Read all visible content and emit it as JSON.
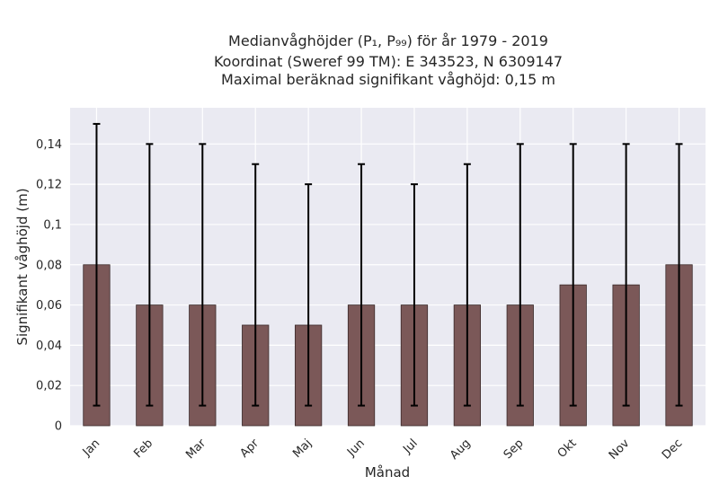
{
  "title_lines": [
    "Medianvåghöjder (P₁, P₉₉) för år 1979 - 2019",
    "Koordinat (Sweref 99 TM): E 343523, N 6309147",
    "Maximal beräknad signifikant våghöjd: 0,15 m"
  ],
  "colors": {
    "bar_fill": "#7b5858",
    "bar_stroke": "#3a2a2a",
    "errorbar": "#000000",
    "plot_bg": "#eaeaf2",
    "grid": "#ffffff"
  },
  "chart_data": {
    "type": "bar",
    "title": "Medianvåghöjder (P₁, P₉₉) för år 1979 - 2019",
    "xlabel": "Månad",
    "ylabel": "Signifikant våghöjd (m)",
    "ylim": [
      0,
      0.158
    ],
    "yticks": [
      0,
      0.02,
      0.04,
      0.06,
      0.08,
      0.1,
      0.12,
      0.14
    ],
    "ytick_labels": [
      "0",
      "0,02",
      "0,04",
      "0,06",
      "0,08",
      "0,1",
      "0,12",
      "0,14"
    ],
    "grid": true,
    "categories": [
      "Jan",
      "Feb",
      "Mar",
      "Apr",
      "Maj",
      "Jun",
      "Jul",
      "Aug",
      "Sep",
      "Okt",
      "Nov",
      "Dec"
    ],
    "values": [
      0.08,
      0.06,
      0.06,
      0.05,
      0.05,
      0.06,
      0.06,
      0.06,
      0.06,
      0.07,
      0.07,
      0.08
    ],
    "error_low": [
      0.01,
      0.01,
      0.01,
      0.01,
      0.01,
      0.01,
      0.01,
      0.01,
      0.01,
      0.01,
      0.01,
      0.01
    ],
    "error_high": [
      0.15,
      0.14,
      0.14,
      0.13,
      0.12,
      0.13,
      0.12,
      0.13,
      0.14,
      0.14,
      0.14,
      0.14
    ]
  }
}
